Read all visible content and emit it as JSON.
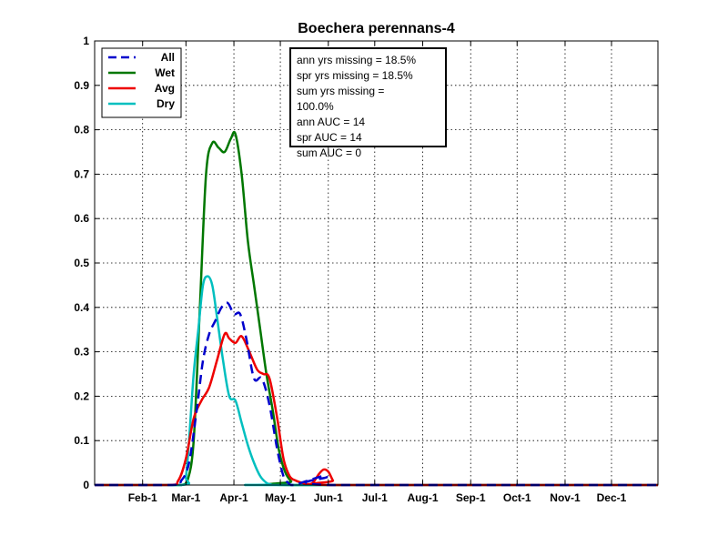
{
  "chart_data": {
    "type": "line",
    "title": "Boechera perennans-4",
    "xlabel": "",
    "ylabel": "",
    "ylim": [
      0,
      1
    ],
    "xlim_day_of_year": [
      1,
      365
    ],
    "grid": true,
    "legend_placement": "top-left",
    "x_tick_labels": [
      "Feb-1",
      "Mar-1",
      "Apr-1",
      "May-1",
      "Jun-1",
      "Jul-1",
      "Aug-1",
      "Sep-1",
      "Oct-1",
      "Nov-1",
      "Dec-1"
    ],
    "x_tick_dates": [
      "02-01",
      "03-01",
      "04-01",
      "05-01",
      "06-01",
      "07-01",
      "08-01",
      "09-01",
      "10-01",
      "11-01",
      "12-01"
    ],
    "y_tick_labels": [
      "0",
      "0.1",
      "0.2",
      "0.3",
      "0.4",
      "0.5",
      "0.6",
      "0.7",
      "0.8",
      "0.9",
      "1"
    ],
    "y_ticks": [
      0,
      0.1,
      0.2,
      0.3,
      0.4,
      0.5,
      0.6,
      0.7,
      0.8,
      0.9,
      1
    ],
    "series": [
      {
        "name": "All",
        "color": "#0000cc",
        "dash": true,
        "x": [
          "01-01",
          "02-20",
          "02-26",
          "03-03",
          "03-08",
          "03-12",
          "03-16",
          "03-20",
          "03-24",
          "03-28",
          "04-01",
          "04-05",
          "04-09",
          "04-14",
          "04-19",
          "04-24",
          "04-29",
          "05-03",
          "05-06",
          "05-08",
          "05-10",
          "05-28",
          "05-31",
          "06-03",
          "12-31"
        ],
        "y": [
          0,
          0,
          0.01,
          0.05,
          0.17,
          0.28,
          0.34,
          0.37,
          0.4,
          0.41,
          0.385,
          0.385,
          0.33,
          0.24,
          0.24,
          0.18,
          0.08,
          0.02,
          0.005,
          0,
          0,
          0.02,
          0.018,
          0,
          0
        ]
      },
      {
        "name": "Wet",
        "color": "#007700",
        "dash": false,
        "x": [
          "01-01",
          "02-20",
          "02-26",
          "03-02",
          "03-06",
          "03-10",
          "03-14",
          "03-18",
          "03-22",
          "03-26",
          "03-30",
          "04-02",
          "04-06",
          "04-10",
          "04-14",
          "04-18",
          "04-22",
          "04-26",
          "04-30",
          "05-04",
          "05-08",
          "05-11",
          "12-31"
        ],
        "y": [
          0,
          0,
          0,
          0.01,
          0.1,
          0.4,
          0.7,
          0.77,
          0.76,
          0.75,
          0.78,
          0.79,
          0.7,
          0.55,
          0.45,
          0.35,
          0.25,
          0.17,
          0.08,
          0.03,
          0.008,
          0,
          0
        ]
      },
      {
        "name": "Avg",
        "color": "#ee0000",
        "dash": false,
        "x": [
          "01-01",
          "02-17",
          "02-24",
          "03-01",
          "03-06",
          "03-11",
          "03-16",
          "03-21",
          "03-26",
          "03-29",
          "04-02",
          "04-06",
          "04-11",
          "04-16",
          "04-20",
          "04-24",
          "04-29",
          "05-03",
          "05-07",
          "05-11",
          "05-15",
          "05-19",
          "05-22",
          "05-26",
          "05-29",
          "06-01",
          "06-04",
          "06-06",
          "12-31"
        ],
        "y": [
          0,
          0,
          0.01,
          0.06,
          0.15,
          0.19,
          0.22,
          0.28,
          0.34,
          0.33,
          0.32,
          0.335,
          0.3,
          0.26,
          0.25,
          0.24,
          0.15,
          0.06,
          0.02,
          0.01,
          0.005,
          0.002,
          0.005,
          0.025,
          0.035,
          0.03,
          0.01,
          0,
          0
        ]
      },
      {
        "name": "Dry",
        "color": "#00bfbf",
        "dash": false,
        "x": [
          "01-01",
          "02-26",
          "03-01",
          "03-03",
          "03-06",
          "03-09",
          "03-12",
          "03-15",
          "03-18",
          "03-21",
          "03-25",
          "03-29",
          "04-02",
          "04-06",
          "04-10",
          "04-14",
          "04-18",
          "04-22",
          "04-25",
          "04-27",
          "12-31"
        ],
        "y": [
          0,
          0,
          0.02,
          0.1,
          0.25,
          0.35,
          0.45,
          0.47,
          0.45,
          0.38,
          0.28,
          0.2,
          0.19,
          0.14,
          0.09,
          0.05,
          0.02,
          0.005,
          0.001,
          0,
          0
        ]
      }
    ],
    "annotation": {
      "lines": [
        "ann yrs missing = 18.5%",
        "spr yrs missing = 18.5%",
        "sum yrs missing =",
        "100.0%",
        "ann AUC = 14",
        "spr AUC = 14",
        "sum AUC = 0"
      ]
    }
  }
}
